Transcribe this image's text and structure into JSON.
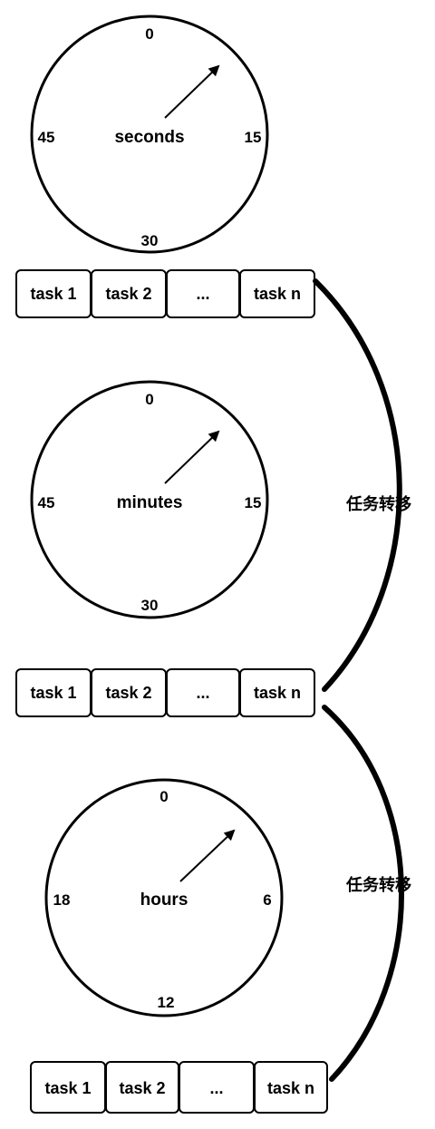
{
  "clocks": [
    {
      "id": "seconds",
      "unit_label": "seconds",
      "ticks": {
        "top": "0",
        "right": "15",
        "bottom": "30",
        "left": "45"
      }
    },
    {
      "id": "minutes",
      "unit_label": "minutes",
      "ticks": {
        "top": "0",
        "right": "15",
        "bottom": "30",
        "left": "45"
      }
    },
    {
      "id": "hours",
      "unit_label": "hours",
      "ticks": {
        "top": "0",
        "right": "6",
        "bottom": "12",
        "left": "18"
      }
    }
  ],
  "task_queues": [
    {
      "tasks": [
        "task 1",
        "task 2",
        "...",
        "task n"
      ]
    },
    {
      "tasks": [
        "task 1",
        "task 2",
        "...",
        "task n"
      ]
    },
    {
      "tasks": [
        "task 1",
        "task 2",
        "...",
        "task n"
      ]
    }
  ],
  "transfers": [
    {
      "label": "任务转移"
    },
    {
      "label": "任务转移"
    }
  ],
  "colors": {
    "stroke": "#000000",
    "fill": "#ffffff",
    "text": "#000000"
  }
}
